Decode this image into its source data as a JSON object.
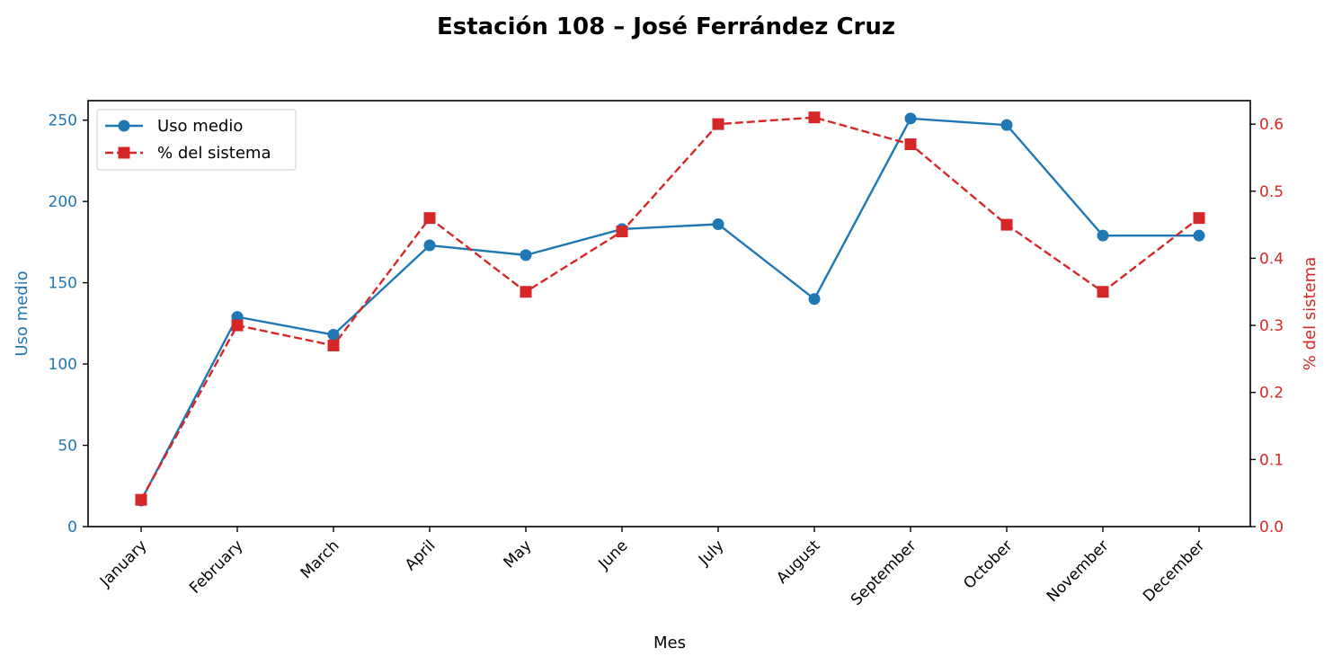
{
  "chart_data": {
    "type": "line",
    "title": "Estación 108 – José Ferrández Cruz",
    "xlabel": "Mes",
    "ylabel_left": "Uso medio",
    "ylabel_right": "% del sistema",
    "categories": [
      "January",
      "February",
      "March",
      "April",
      "May",
      "June",
      "July",
      "August",
      "September",
      "October",
      "November",
      "December"
    ],
    "ylim_left": [
      0,
      262
    ],
    "ylim_right": [
      0,
      0.635
    ],
    "yticks_left": [
      0,
      50,
      100,
      150,
      200,
      250
    ],
    "yticks_right": [
      0.0,
      0.1,
      0.2,
      0.3,
      0.4,
      0.5,
      0.6
    ],
    "grid": false,
    "legend_position": "upper-left",
    "series": [
      {
        "name": "Uso medio",
        "axis": "left",
        "color": "#1f77b4",
        "line_style": "solid",
        "marker": "circle",
        "values": [
          16,
          129,
          118,
          173,
          167,
          183,
          186,
          140,
          251,
          247,
          179,
          179
        ]
      },
      {
        "name": "% del sistema",
        "axis": "right",
        "color": "#d62728",
        "line_style": "dashed",
        "marker": "square",
        "values": [
          0.04,
          0.3,
          0.27,
          0.46,
          0.35,
          0.44,
          0.6,
          0.61,
          0.57,
          0.45,
          0.35,
          0.46
        ]
      }
    ]
  }
}
